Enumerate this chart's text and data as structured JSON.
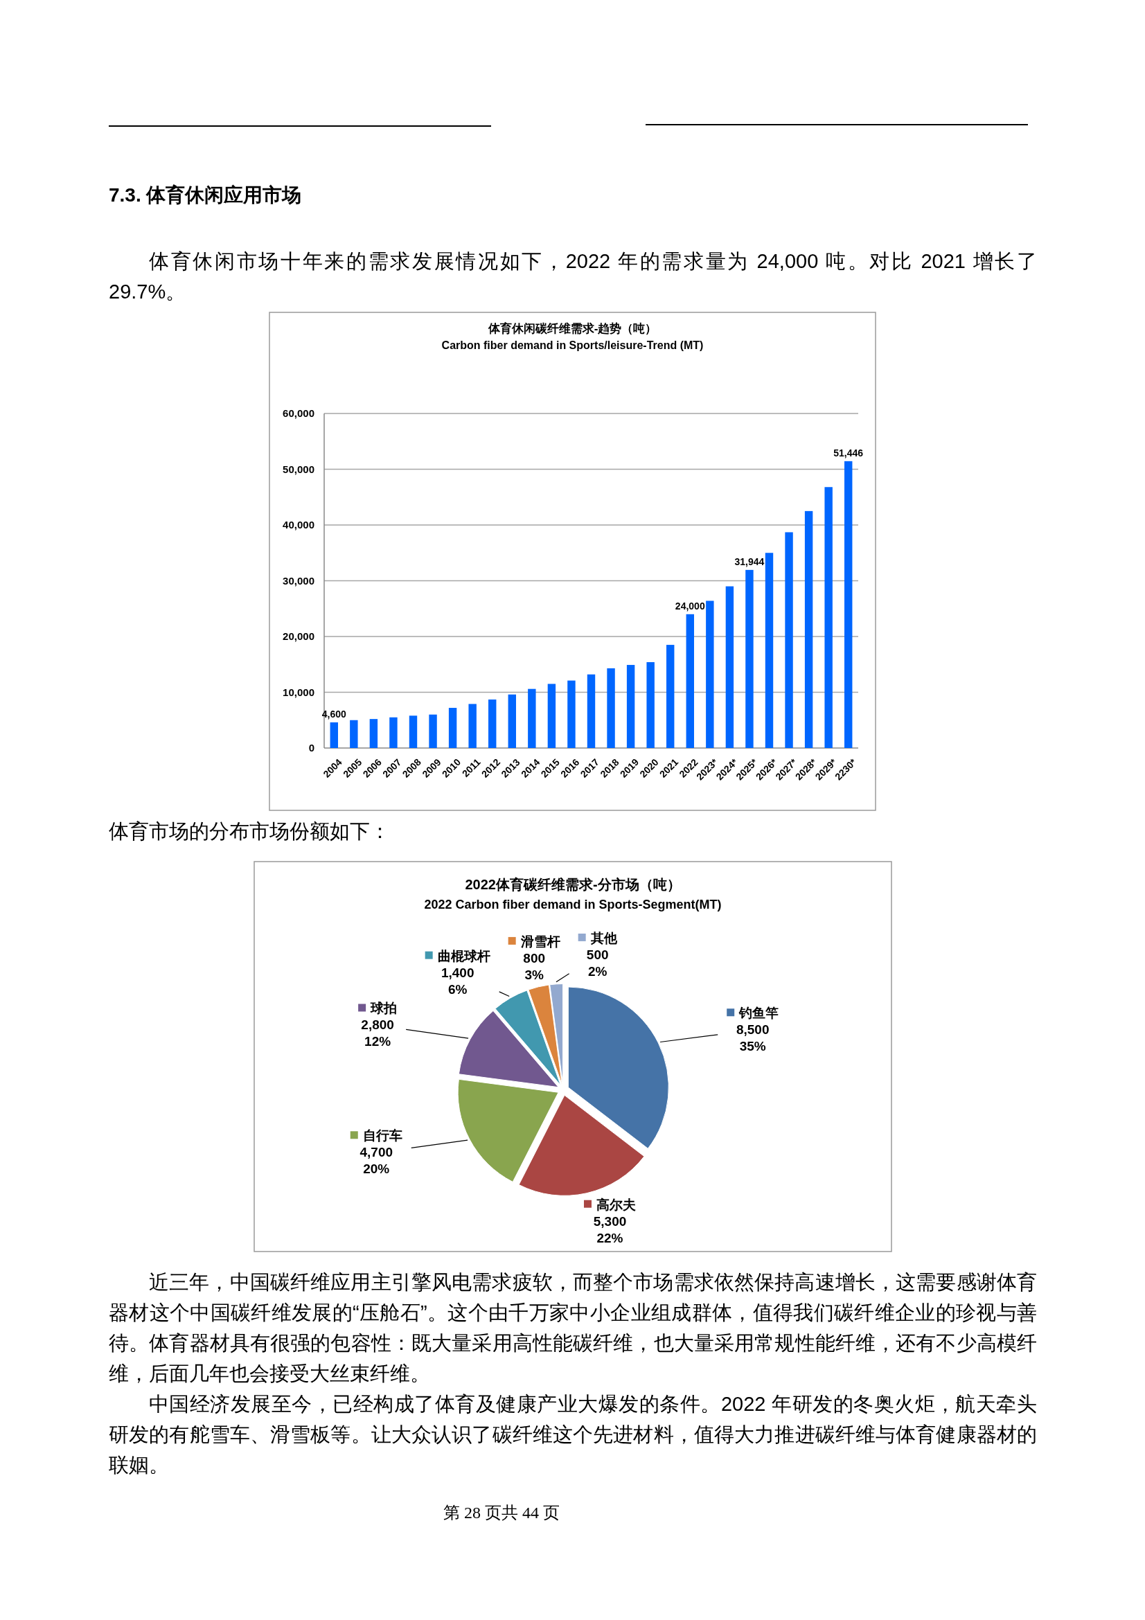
{
  "chart_data": [
    {
      "type": "bar",
      "title": "体育休闲碳纤维需求-趋势（吨）",
      "subtitle": "Carbon fiber demand in Sports/leisure-Trend (MT)",
      "annotations": [
        "7.3. 体育休闲应用市场",
        "体育休闲市场十年来的需求发展情况如下，2022 年的需求量为 24,000 吨。对比 2021 增长了 29.7%。"
      ],
      "categories": [
        "2004",
        "2005",
        "2006",
        "2007",
        "2008",
        "2009",
        "2010",
        "2011",
        "2012",
        "2013",
        "2014",
        "2015",
        "2016",
        "2017",
        "2018",
        "2019",
        "2020",
        "2021",
        "2022",
        "2023*",
        "2024*",
        "2025*",
        "2026*",
        "2027*",
        "2028*",
        "2029*",
        "2230*"
      ],
      "values": [
        4600,
        5000,
        5200,
        5500,
        5800,
        6000,
        7200,
        7900,
        8700,
        9600,
        10600,
        11500,
        12100,
        13200,
        14300,
        14900,
        15400,
        18500,
        24000,
        26400,
        29000,
        31944,
        35000,
        38700,
        42500,
        46800,
        51446
      ],
      "value_labels": [
        "4,600",
        null,
        null,
        null,
        null,
        null,
        null,
        null,
        null,
        null,
        null,
        null,
        null,
        null,
        null,
        null,
        null,
        null,
        "24,000",
        null,
        null,
        "31,944",
        null,
        null,
        null,
        null,
        "51,446"
      ],
      "color": "#0066ff",
      "ylim": [
        0,
        60000
      ],
      "yticks": [
        0,
        {
          "value": 10000,
          "label": "10,000"
        },
        {
          "value": 20000,
          "label": "20,000"
        },
        {
          "value": 30000,
          "label": "30,000"
        },
        {
          "value": 40000,
          "label": "40,000"
        },
        {
          "value": 50000,
          "label": "50,000"
        },
        {
          "value": 60000,
          "label": "60,000"
        }
      ],
      "grid": "y"
    },
    {
      "type": "pie",
      "title": "2022体育碳纤维需求-分市场（吨）",
      "subtitle": "2022 Carbon fiber demand in Sports-Segment(MT)",
      "annotations": [
        "体育市场的分布市场份额如下：",
        "近三年，中国碳纤维应用主引擎风电需求疲软，而整个市场需求依然保持高速增长，这需要感谢体育器材这个中国碳纤维发展的“压舱石”。这个由千万家中小企业组成群体，值得我们碳纤维企业的珍视与善待。体育器材具有很强的包容性：既大量采用高性能碳纤维，也大量采用常规性能纤维，还有不少高模纤维，后面几年也会接受大丝束纤维。",
        "中国经济发展至今，已经构成了体育及健康产业大爆发的条件。2022 年研发的冬奥火炬，航天牵头研发的有舵雪车、滑雪板等。让大众认识了碳纤维这个先进材料，值得大力推进碳纤维与体育健康器材的联姻。",
        "第 28 页共 44 页"
      ],
      "categories": [
        "钓鱼竿",
        "高尔夫",
        "自行车",
        "球拍",
        "曲棍球杆",
        "滑雪杆",
        "其他"
      ],
      "values": [
        8500,
        5300,
        4700,
        2800,
        1400,
        800,
        500
      ],
      "value_labels": [
        "8,500\n35%",
        "5,300\n22%",
        "4,700\n20%",
        "2,800\n12%",
        "1,400\n6%",
        "800\n3%",
        "500\n2%"
      ],
      "colors": [
        "#4573a7",
        "#aa4643",
        "#89a54e",
        "#71588f",
        "#4198af",
        "#db843d",
        "#93a9cf"
      ],
      "legend": true
    }
  ]
}
